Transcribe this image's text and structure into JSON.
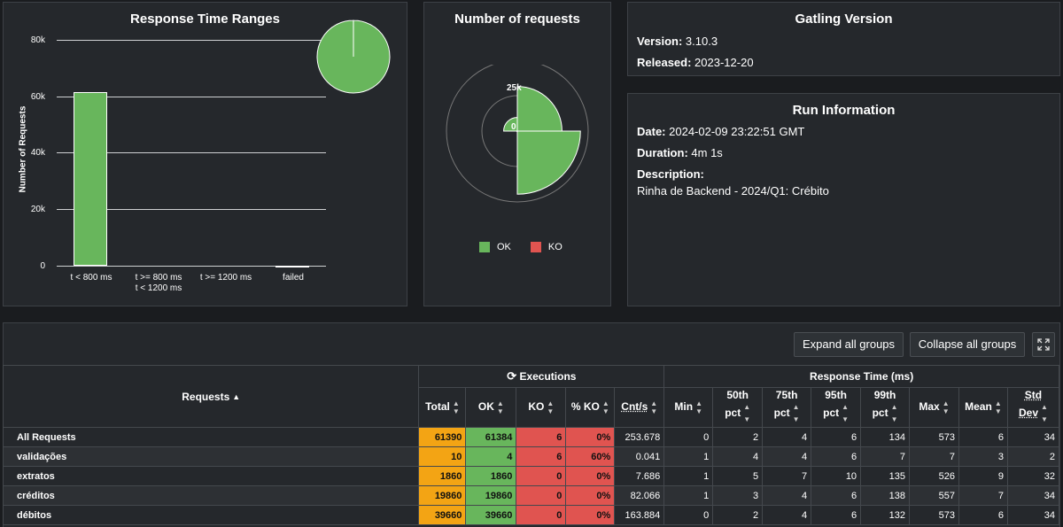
{
  "rtr": {
    "title": "Response Time Ranges",
    "ylabel": "Number of Requests",
    "yticks": [
      "80k",
      "60k",
      "40k",
      "20k",
      "0"
    ],
    "categories": [
      {
        "l1": "t < 800 ms",
        "l2": ""
      },
      {
        "l1": "t >= 800 ms",
        "l2": "t < 1200 ms"
      },
      {
        "l1": "t >= 1200 ms",
        "l2": ""
      },
      {
        "l1": "failed",
        "l2": ""
      }
    ]
  },
  "chart_data": [
    {
      "type": "bar",
      "title": "Response Time Ranges",
      "ylabel": "Number of Requests",
      "categories": [
        "t < 800 ms",
        "t >= 800 ms t < 1200 ms",
        "t >= 1200 ms",
        "failed"
      ],
      "values": [
        61384,
        0,
        0,
        6
      ],
      "ylim": [
        0,
        80000
      ],
      "grid": true,
      "colors": [
        "#68b65c"
      ]
    },
    {
      "type": "pie",
      "labels": [
        "t < 800 ms",
        "failed"
      ],
      "values": [
        61384,
        6
      ],
      "colors": [
        "#68b65c",
        "#e05450"
      ]
    },
    {
      "type": "polar-area",
      "title": "Number of requests",
      "tick_labels": [
        "25k",
        "0"
      ],
      "series": [
        {
          "name": "OK",
          "color": "#68b65c"
        },
        {
          "name": "KO",
          "color": "#e05450"
        }
      ],
      "categories": [
        "validações",
        "extratos",
        "créditos",
        "débitos"
      ],
      "values_ok": [
        4,
        1860,
        19860,
        39660
      ],
      "values_ko": [
        6,
        0,
        0,
        0
      ],
      "rmax": 50000
    }
  ],
  "nreq": {
    "title": "Number of requests",
    "tick25": "25k",
    "tick0": "0",
    "legend_ok": "OK",
    "legend_ko": "KO",
    "ok_color": "#68b65c",
    "ko_color": "#e05450"
  },
  "gatling": {
    "title": "Gatling Version",
    "version_label": "Version:",
    "version": "3.10.3",
    "released_label": "Released:",
    "released": "2023-12-20"
  },
  "run": {
    "title": "Run Information",
    "date_label": "Date:",
    "date": "2024-02-09 23:22:51 GMT",
    "duration_label": "Duration:",
    "duration": "4m 1s",
    "desc_label": "Description:",
    "desc": "Rinha de Backend - 2024/Q1: Crébito"
  },
  "toolbar": {
    "expand": "Expand all groups",
    "collapse": "Collapse all groups"
  },
  "table": {
    "requests_header": "Requests",
    "executions_header": "Executions",
    "response_header": "Response Time (ms)",
    "cols": {
      "total": "Total",
      "ok": "OK",
      "ko": "KO",
      "pctko": "% KO",
      "cnts": "Cnt/s",
      "min": "Min",
      "p50a": "50th",
      "p50b": "pct",
      "p75a": "75th",
      "p75b": "pct",
      "p95a": "95th",
      "p95b": "pct",
      "p99a": "99th",
      "p99b": "pct",
      "max": "Max",
      "mean": "Mean",
      "stda": "Std",
      "stdb": "Dev"
    },
    "rows": [
      {
        "name": "All Requests",
        "total": "61390",
        "ok": "61384",
        "ko": "6",
        "pctko": "0%",
        "cnts": "253.678",
        "min": "0",
        "p50": "2",
        "p75": "4",
        "p95": "6",
        "p99": "134",
        "max": "573",
        "mean": "6",
        "std": "34"
      },
      {
        "name": "validações",
        "total": "10",
        "ok": "4",
        "ko": "6",
        "pctko": "60%",
        "cnts": "0.041",
        "min": "1",
        "p50": "4",
        "p75": "4",
        "p95": "6",
        "p99": "7",
        "max": "7",
        "mean": "3",
        "std": "2"
      },
      {
        "name": "extratos",
        "total": "1860",
        "ok": "1860",
        "ko": "0",
        "pctko": "0%",
        "cnts": "7.686",
        "min": "1",
        "p50": "5",
        "p75": "7",
        "p95": "10",
        "p99": "135",
        "max": "526",
        "mean": "9",
        "std": "32"
      },
      {
        "name": "créditos",
        "total": "19860",
        "ok": "19860",
        "ko": "0",
        "pctko": "0%",
        "cnts": "82.066",
        "min": "1",
        "p50": "3",
        "p75": "4",
        "p95": "6",
        "p99": "138",
        "max": "557",
        "mean": "7",
        "std": "34"
      },
      {
        "name": "débitos",
        "total": "39660",
        "ok": "39660",
        "ko": "0",
        "pctko": "0%",
        "cnts": "163.884",
        "min": "0",
        "p50": "2",
        "p75": "4",
        "p95": "6",
        "p99": "132",
        "max": "573",
        "mean": "6",
        "std": "34"
      }
    ]
  }
}
